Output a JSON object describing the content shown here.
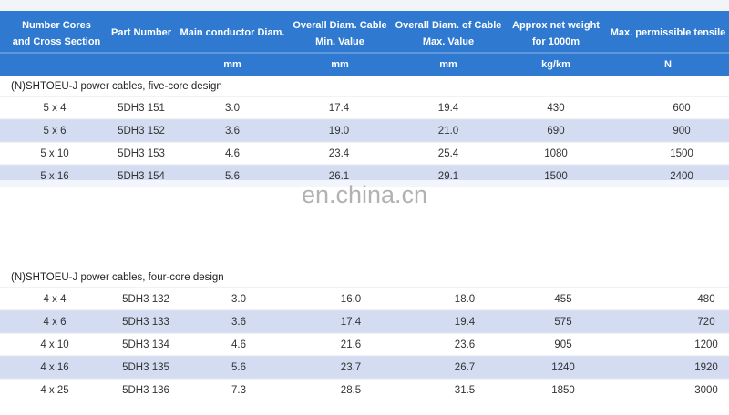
{
  "header": {
    "columns": [
      [
        "Number Cores",
        "and Cross Section"
      ],
      [
        "Part Number"
      ],
      [
        "Main conductor Diam."
      ],
      [
        "Overall Diam. Cable",
        "Min. Value"
      ],
      [
        "Overall Diam. of Cable",
        "Max. Value"
      ],
      [
        "Approx net weight",
        "for 1000m"
      ],
      [
        "Max. permissible tensile"
      ]
    ],
    "units": [
      "mm",
      "mm",
      "mm",
      "kg/km",
      "N"
    ]
  },
  "sections": [
    {
      "title": "(N)SHTOEU-J power cables, five-core design",
      "rows": [
        [
          "5 x 4",
          "5DH3 151",
          "3.0",
          "17.4",
          "19.4",
          "430",
          "600"
        ],
        [
          "5 x 6",
          "5DH3 152",
          "3.6",
          "19.0",
          "21.0",
          "690",
          "900"
        ],
        [
          "5 x 10",
          "5DH3 153",
          "4.6",
          "23.4",
          "25.4",
          "1080",
          "1500"
        ],
        [
          "5 x 16",
          "5DH3 154",
          "5.6",
          "26.1",
          "29.1",
          "1500",
          "2400"
        ]
      ]
    },
    {
      "title": "(N)SHTOEU-J power cables, four-core design",
      "rows": [
        [
          "4 x 4",
          "5DH3 132",
          "3.0",
          "16.0",
          "18.0",
          "455",
          "480"
        ],
        [
          "4 x 6",
          "5DH3 133",
          "3.6",
          "17.4",
          "19.4",
          "575",
          "720"
        ],
        [
          "4 x 10",
          "5DH3 134",
          "4.6",
          "21.6",
          "23.6",
          "905",
          "1200"
        ],
        [
          "4 x 16",
          "5DH3 135",
          "5.6",
          "23.7",
          "26.7",
          "1240",
          "1920"
        ],
        [
          "4 x 25",
          "5DH3 136",
          "7.3",
          "28.5",
          "31.5",
          "1850",
          "3000"
        ]
      ]
    }
  ],
  "watermark": "en.china.cn"
}
